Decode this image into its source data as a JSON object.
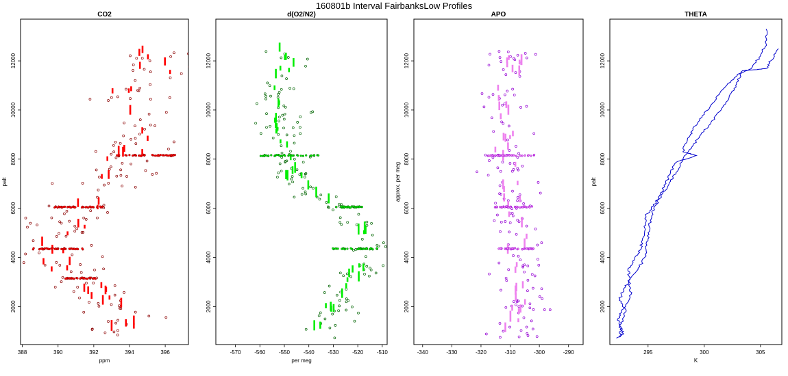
{
  "figure_title": "160801b   Interval FairbanksLow Profiles",
  "chart_data": [
    {
      "type": "scatter",
      "title": "CO2",
      "xlabel": "ppm",
      "ylabel": "palt",
      "xlim": [
        387.9,
        397.3
      ],
      "ylim": [
        450,
        13700
      ],
      "xticks": [
        388,
        390,
        392,
        394,
        396
      ],
      "yticks": [
        2000,
        4000,
        6000,
        8000,
        10000,
        12000
      ],
      "color": "#ff0000",
      "outline_color": "#8b0000",
      "profile": [
        [
          395.2,
          12400
        ],
        [
          395.0,
          11900
        ],
        [
          395.6,
          11300
        ],
        [
          393.8,
          10700
        ],
        [
          394.4,
          10000
        ],
        [
          394.8,
          9400
        ],
        [
          394.2,
          8800
        ],
        [
          394.0,
          8200
        ],
        [
          393.4,
          7800
        ],
        [
          392.8,
          7200
        ],
        [
          392.3,
          6600
        ],
        [
          391.6,
          6100
        ],
        [
          391.1,
          5600
        ],
        [
          390.6,
          5100
        ],
        [
          390.2,
          4700
        ],
        [
          389.6,
          4350
        ],
        [
          389.8,
          3900
        ],
        [
          390.3,
          3500
        ],
        [
          391.0,
          3200
        ],
        [
          391.8,
          2900
        ],
        [
          392.4,
          2500
        ],
        [
          393.0,
          2100
        ],
        [
          393.6,
          1700
        ],
        [
          393.8,
          1300
        ],
        [
          393.2,
          1000
        ],
        [
          392.8,
          750
        ]
      ],
      "spread": 1.5,
      "dense_layers": [
        {
          "y": 8150,
          "x": [
            393.3,
            396.7
          ]
        },
        {
          "y": 6050,
          "x": [
            389.8,
            392.5
          ]
        },
        {
          "y": 4350,
          "x": [
            388.6,
            391.4
          ]
        },
        {
          "y": 3150,
          "x": [
            390.4,
            392.1
          ]
        }
      ]
    },
    {
      "type": "scatter",
      "title": "d(O2/N2)",
      "xlabel": "per meg",
      "ylabel": "",
      "xlim": [
        -578,
        -508
      ],
      "ylim": [
        450,
        13700
      ],
      "xticks": [
        -570,
        -560,
        -550,
        -540,
        -530,
        -520,
        -510
      ],
      "yticks": [
        2000,
        4000,
        6000,
        8000,
        10000,
        12000
      ],
      "color": "#00ee00",
      "outline_color": "#006400",
      "profile": [
        [
          -549,
          12400
        ],
        [
          -548,
          11900
        ],
        [
          -552,
          11300
        ],
        [
          -554,
          10700
        ],
        [
          -551,
          10000
        ],
        [
          -553,
          9400
        ],
        [
          -548,
          8800
        ],
        [
          -550,
          8200
        ],
        [
          -549,
          7600
        ],
        [
          -545,
          7000
        ],
        [
          -540,
          6500
        ],
        [
          -530,
          6100
        ],
        [
          -521,
          5600
        ],
        [
          -519,
          5100
        ],
        [
          -517,
          4700
        ],
        [
          -515,
          4350
        ],
        [
          -517,
          3900
        ],
        [
          -518,
          3500
        ],
        [
          -522,
          3000
        ],
        [
          -526,
          2500
        ],
        [
          -529,
          2000
        ],
        [
          -532,
          1600
        ],
        [
          -534,
          1200
        ],
        [
          -538,
          900
        ],
        [
          -539,
          700
        ]
      ],
      "spread": 6,
      "dense_layers": [
        {
          "y": 8150,
          "x": [
            -560,
            -536
          ]
        },
        {
          "y": 6050,
          "x": [
            -529,
            -518
          ]
        },
        {
          "y": 4350,
          "x": [
            -531,
            -512
          ]
        }
      ]
    },
    {
      "type": "scatter",
      "title": "APO",
      "xlabel": "",
      "ylabel": "approx. per meg",
      "xlim": [
        -343,
        -285
      ],
      "ylim": [
        450,
        13700
      ],
      "xticks": [
        -340,
        -330,
        -320,
        -310,
        -300,
        -290
      ],
      "yticks": [
        2000,
        4000,
        6000,
        8000,
        10000,
        12000
      ],
      "color": "#ee82ee",
      "outline_color": "#9400d3",
      "profile": [
        [
          -311,
          12400
        ],
        [
          -309,
          11900
        ],
        [
          -310,
          11300
        ],
        [
          -312,
          10700
        ],
        [
          -311,
          10000
        ],
        [
          -310,
          9400
        ],
        [
          -313,
          8800
        ],
        [
          -312,
          8200
        ],
        [
          -311,
          7600
        ],
        [
          -310,
          7000
        ],
        [
          -309,
          6500
        ],
        [
          -309,
          6100
        ],
        [
          -308,
          5600
        ],
        [
          -307,
          5100
        ],
        [
          -307,
          4700
        ],
        [
          -308,
          4350
        ],
        [
          -307,
          3900
        ],
        [
          -308,
          3500
        ],
        [
          -309,
          3000
        ],
        [
          -308,
          2500
        ],
        [
          -307,
          2000
        ],
        [
          -306,
          1600
        ],
        [
          -307,
          1200
        ],
        [
          -309,
          900
        ],
        [
          -310,
          700
        ]
      ],
      "spread": 6,
      "dense_layers": [
        {
          "y": 8150,
          "x": [
            -318,
            -301
          ]
        },
        {
          "y": 6050,
          "x": [
            -316,
            -302
          ]
        },
        {
          "y": 4350,
          "x": [
            -314,
            -302
          ]
        }
      ]
    },
    {
      "type": "line",
      "title": "THETA",
      "xlabel": "K",
      "ylabel": "palt",
      "xlim": [
        291.6,
        306.9
      ],
      "ylim": [
        450,
        13700
      ],
      "xticks": [
        295,
        300,
        305
      ],
      "yticks": [
        2000,
        4000,
        6000,
        8000,
        10000,
        12000
      ],
      "color": "#0000cd",
      "series": [
        {
          "name": "",
          "points": [
            [
              292.2,
              700
            ],
            [
              292.8,
              900
            ],
            [
              292.5,
              1200
            ],
            [
              292.9,
              1600
            ],
            [
              293.0,
              2000
            ],
            [
              293.5,
              2500
            ],
            [
              293.3,
              3000
            ],
            [
              294.1,
              3500
            ],
            [
              294.7,
              4000
            ],
            [
              294.9,
              4500
            ],
            [
              295.0,
              5000
            ],
            [
              295.2,
              5500
            ],
            [
              295.5,
              6000
            ],
            [
              296.3,
              6600
            ],
            [
              297.0,
              7100
            ],
            [
              297.6,
              7500
            ],
            [
              298.1,
              8000
            ],
            [
              298.9,
              8500
            ],
            [
              299.7,
              9000
            ],
            [
              300.6,
              9500
            ],
            [
              301.5,
              10000
            ],
            [
              302.2,
              10500
            ],
            [
              302.8,
              11000
            ],
            [
              303.3,
              11500
            ],
            [
              304.2,
              11700
            ],
            [
              305.0,
              12200
            ],
            [
              305.5,
              12700
            ],
            [
              305.5,
              13300
            ]
          ]
        },
        {
          "name": "",
          "points": [
            [
              292.5,
              750
            ],
            [
              292.6,
              1100
            ],
            [
              292.3,
              1500
            ],
            [
              292.8,
              1900
            ],
            [
              292.5,
              2300
            ],
            [
              292.8,
              2700
            ],
            [
              293.4,
              3100
            ],
            [
              293.2,
              3500
            ],
            [
              293.8,
              3900
            ],
            [
              294.3,
              4300
            ],
            [
              294.5,
              4700
            ],
            [
              294.7,
              5200
            ],
            [
              294.8,
              5700
            ],
            [
              295.5,
              6100
            ],
            [
              296.0,
              6500
            ],
            [
              296.6,
              7000
            ],
            [
              297.0,
              7500
            ],
            [
              297.6,
              7900
            ],
            [
              299.3,
              8150
            ],
            [
              298.1,
              8300
            ],
            [
              298.5,
              8800
            ],
            [
              299.0,
              9200
            ],
            [
              299.8,
              9700
            ],
            [
              300.6,
              10200
            ],
            [
              301.4,
              10700
            ],
            [
              302.4,
              11200
            ],
            [
              303.4,
              11600
            ],
            [
              304.8,
              11650
            ],
            [
              305.6,
              11700
            ],
            [
              305.9,
              12000
            ],
            [
              306.6,
              12500
            ]
          ]
        }
      ]
    }
  ]
}
